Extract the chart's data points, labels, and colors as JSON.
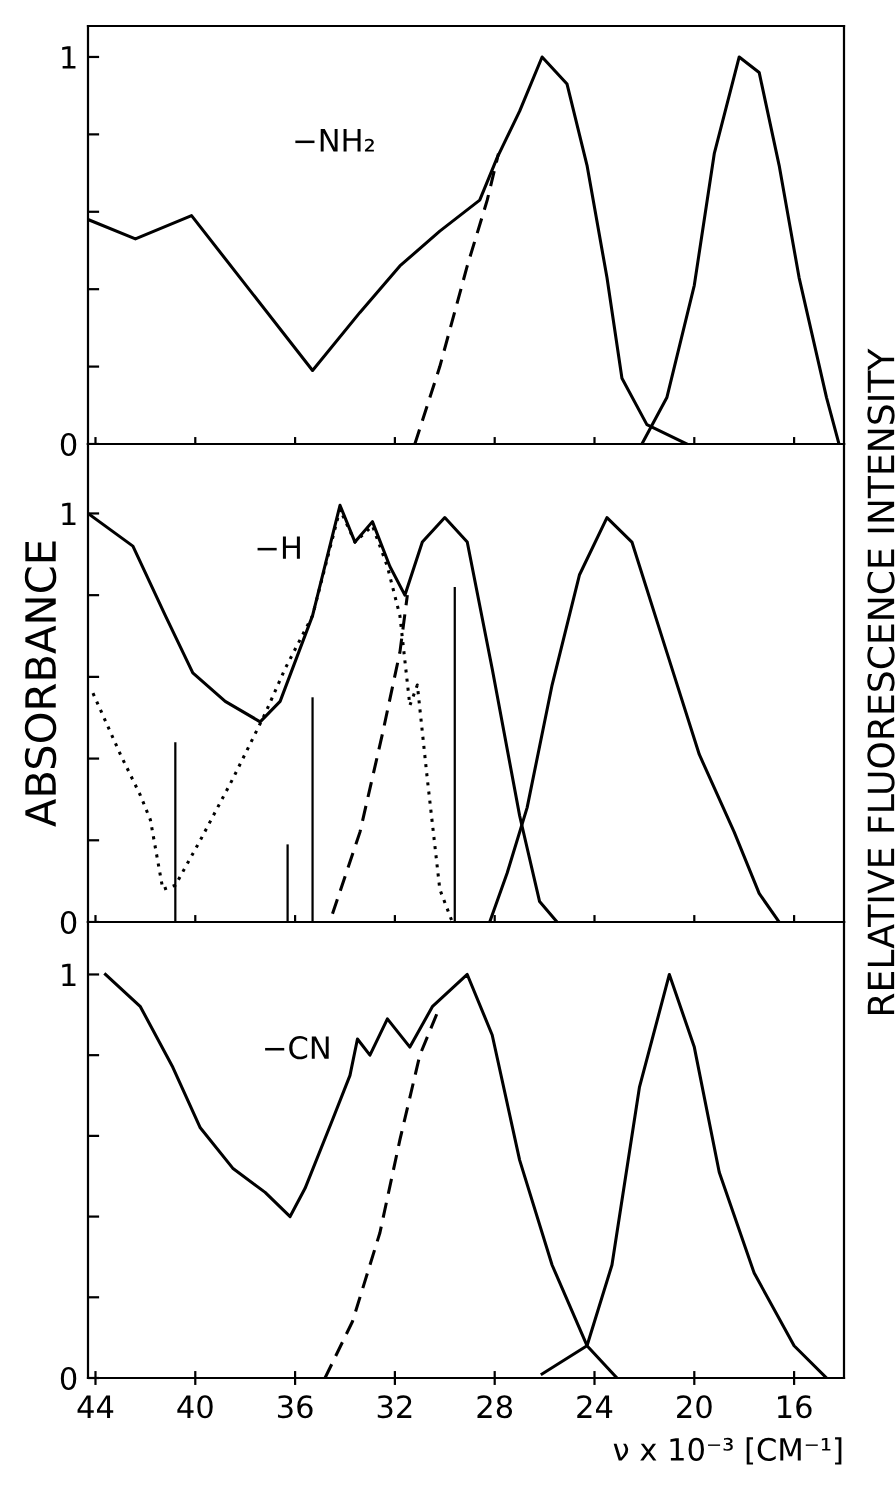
{
  "chart_data": [
    {
      "type": "line",
      "annotations": [
        "−NH₂"
      ],
      "xlim": [
        44.3,
        14
      ],
      "xticks": [
        44,
        40,
        36,
        32,
        28,
        24,
        20,
        16
      ],
      "ylim": [
        0,
        1.08
      ],
      "yticks": [
        0,
        {
          "value": 0.2,
          "label": null
        },
        {
          "value": 0.4,
          "label": null
        },
        {
          "value": 0.6,
          "label": null
        },
        {
          "value": 0.8,
          "label": null
        },
        1
      ],
      "tick_labels": "y",
      "grid": false,
      "legend": false,
      "series": [
        {
          "color": "#000000",
          "line_style": "solid",
          "x": [
            44.3,
            42.4,
            40.15,
            35.3,
            33.4,
            31.8,
            30.2,
            28.6,
            27.9,
            27.0,
            26.1,
            25.1,
            24.3,
            23.5,
            22.9,
            21.9,
            20.3
          ],
          "values": [
            0.58,
            0.53,
            0.59,
            0.19,
            0.34,
            0.46,
            0.55,
            0.63,
            0.74,
            0.86,
            1.0,
            0.93,
            0.72,
            0.43,
            0.17,
            0.05,
            0
          ]
        },
        {
          "color": "#000000",
          "line_style": "dashed",
          "x": [
            31.2,
            30.2,
            29.1,
            28.3,
            27.85
          ],
          "values": [
            0,
            0.2,
            0.46,
            0.63,
            0.75
          ]
        },
        {
          "color": "#000000",
          "line_style": "solid",
          "x": [
            22.1,
            21.1,
            20.0,
            19.2,
            18.2,
            17.4,
            16.6,
            15.8,
            14.7,
            14.2
          ],
          "values": [
            0,
            0.12,
            0.41,
            0.75,
            1.0,
            0.96,
            0.72,
            0.43,
            0.12,
            0
          ]
        }
      ]
    },
    {
      "type": "line",
      "annotations": [
        "−H"
      ],
      "ylabel": "ABSORBANCE",
      "y2label": "RELATIVE FLUORESCENCE INTENSITY",
      "xlim": [
        44.3,
        14
      ],
      "xticks": [
        44,
        40,
        36,
        32,
        28,
        24,
        20,
        16
      ],
      "ylim": [
        0,
        1.17
      ],
      "yticks": [
        0,
        {
          "value": 0.2,
          "label": null
        },
        {
          "value": 0.4,
          "label": null
        },
        {
          "value": 0.6,
          "label": null
        },
        {
          "value": 0.8,
          "label": null
        },
        1
      ],
      "tick_labels": "y",
      "grid": false,
      "legend": false,
      "series": [
        {
          "color": "#000000",
          "line_style": "solid",
          "x": [
            44.3,
            42.5,
            41.2,
            40.1,
            38.8,
            37.4,
            36.6,
            35.3,
            34.2,
            33.6,
            32.9,
            32.2,
            31.6,
            30.9,
            30.0,
            29.1,
            28.1,
            27.0,
            26.2,
            25.5
          ],
          "values": [
            1.0,
            0.92,
            0.75,
            0.61,
            0.54,
            0.49,
            0.54,
            0.75,
            1.02,
            0.93,
            0.98,
            0.87,
            0.8,
            0.93,
            0.99,
            0.93,
            0.62,
            0.26,
            0.05,
            0
          ]
        },
        {
          "color": "#000000",
          "line_style": "dotted",
          "x": [
            44.1,
            43.0,
            42.2,
            41.8,
            41.3,
            40.8,
            39.8,
            38.5,
            37.2,
            36.4,
            35.3,
            34.2,
            33.6,
            32.9,
            32.3,
            31.8,
            31.4,
            31.1,
            30.7,
            30.2,
            29.7
          ],
          "values": [
            0.56,
            0.41,
            0.31,
            0.25,
            0.08,
            0.09,
            0.2,
            0.35,
            0.51,
            0.62,
            0.75,
            1.01,
            0.93,
            0.97,
            0.87,
            0.75,
            0.53,
            0.58,
            0.35,
            0.08,
            0
          ]
        },
        {
          "color": "#000000",
          "line_style": "dashed",
          "x": [
            34.5,
            33.4,
            32.5,
            31.8,
            31.5
          ],
          "values": [
            0.02,
            0.22,
            0.46,
            0.66,
            0.8
          ]
        },
        {
          "color": "#000000",
          "line_style": "solid",
          "x": [
            28.2,
            27.5,
            26.7,
            25.7,
            24.6,
            23.5,
            22.5,
            21.1,
            19.8,
            18.4,
            17.4,
            16.6
          ],
          "values": [
            0,
            0.12,
            0.28,
            0.58,
            0.85,
            0.99,
            0.93,
            0.66,
            0.41,
            0.22,
            0.07,
            0
          ]
        },
        {
          "type": "bar",
          "color": "#000000",
          "x": [
            40.8,
            36.3,
            35.3,
            29.6
          ],
          "values": [
            0.44,
            0.19,
            0.55,
            0.82
          ]
        }
      ]
    },
    {
      "type": "line",
      "annotations": [
        "−CN"
      ],
      "xlabel": "ν x 10⁻³ [CM⁻¹]",
      "xlim": [
        44.3,
        14
      ],
      "xticks": [
        44,
        40,
        36,
        32,
        28,
        24,
        20,
        16
      ],
      "ylim": [
        0,
        1.13
      ],
      "yticks": [
        0,
        {
          "value": 0.2,
          "label": null
        },
        {
          "value": 0.4,
          "label": null
        },
        {
          "value": 0.6,
          "label": null
        },
        {
          "value": 0.8,
          "label": null
        },
        1
      ],
      "grid": false,
      "legend": false,
      "series": [
        {
          "color": "#000000",
          "line_style": "solid",
          "x": [
            43.6,
            42.2,
            40.9,
            39.8,
            38.5,
            37.2,
            36.2,
            35.6,
            34.5,
            33.8,
            33.5,
            33.0,
            32.3,
            31.4,
            30.5,
            29.1,
            28.1,
            27.0,
            25.7,
            24.3,
            23.1
          ],
          "values": [
            1.0,
            0.92,
            0.77,
            0.62,
            0.52,
            0.46,
            0.4,
            0.47,
            0.64,
            0.75,
            0.84,
            0.8,
            0.89,
            0.82,
            0.92,
            1.0,
            0.85,
            0.54,
            0.28,
            0.08,
            0
          ]
        },
        {
          "color": "#000000",
          "line_style": "dashed",
          "x": [
            34.8,
            33.7,
            32.6,
            31.8,
            31.0,
            30.2
          ],
          "values": [
            0,
            0.14,
            0.36,
            0.59,
            0.8,
            0.92
          ]
        },
        {
          "color": "#000000",
          "line_style": "solid",
          "x": [
            26.1,
            24.3,
            23.3,
            22.2,
            21.0,
            20.0,
            19.0,
            17.6,
            16.0,
            14.7
          ],
          "values": [
            0.01,
            0.08,
            0.28,
            0.72,
            1.0,
            0.82,
            0.51,
            0.26,
            0.08,
            0
          ]
        }
      ]
    }
  ]
}
